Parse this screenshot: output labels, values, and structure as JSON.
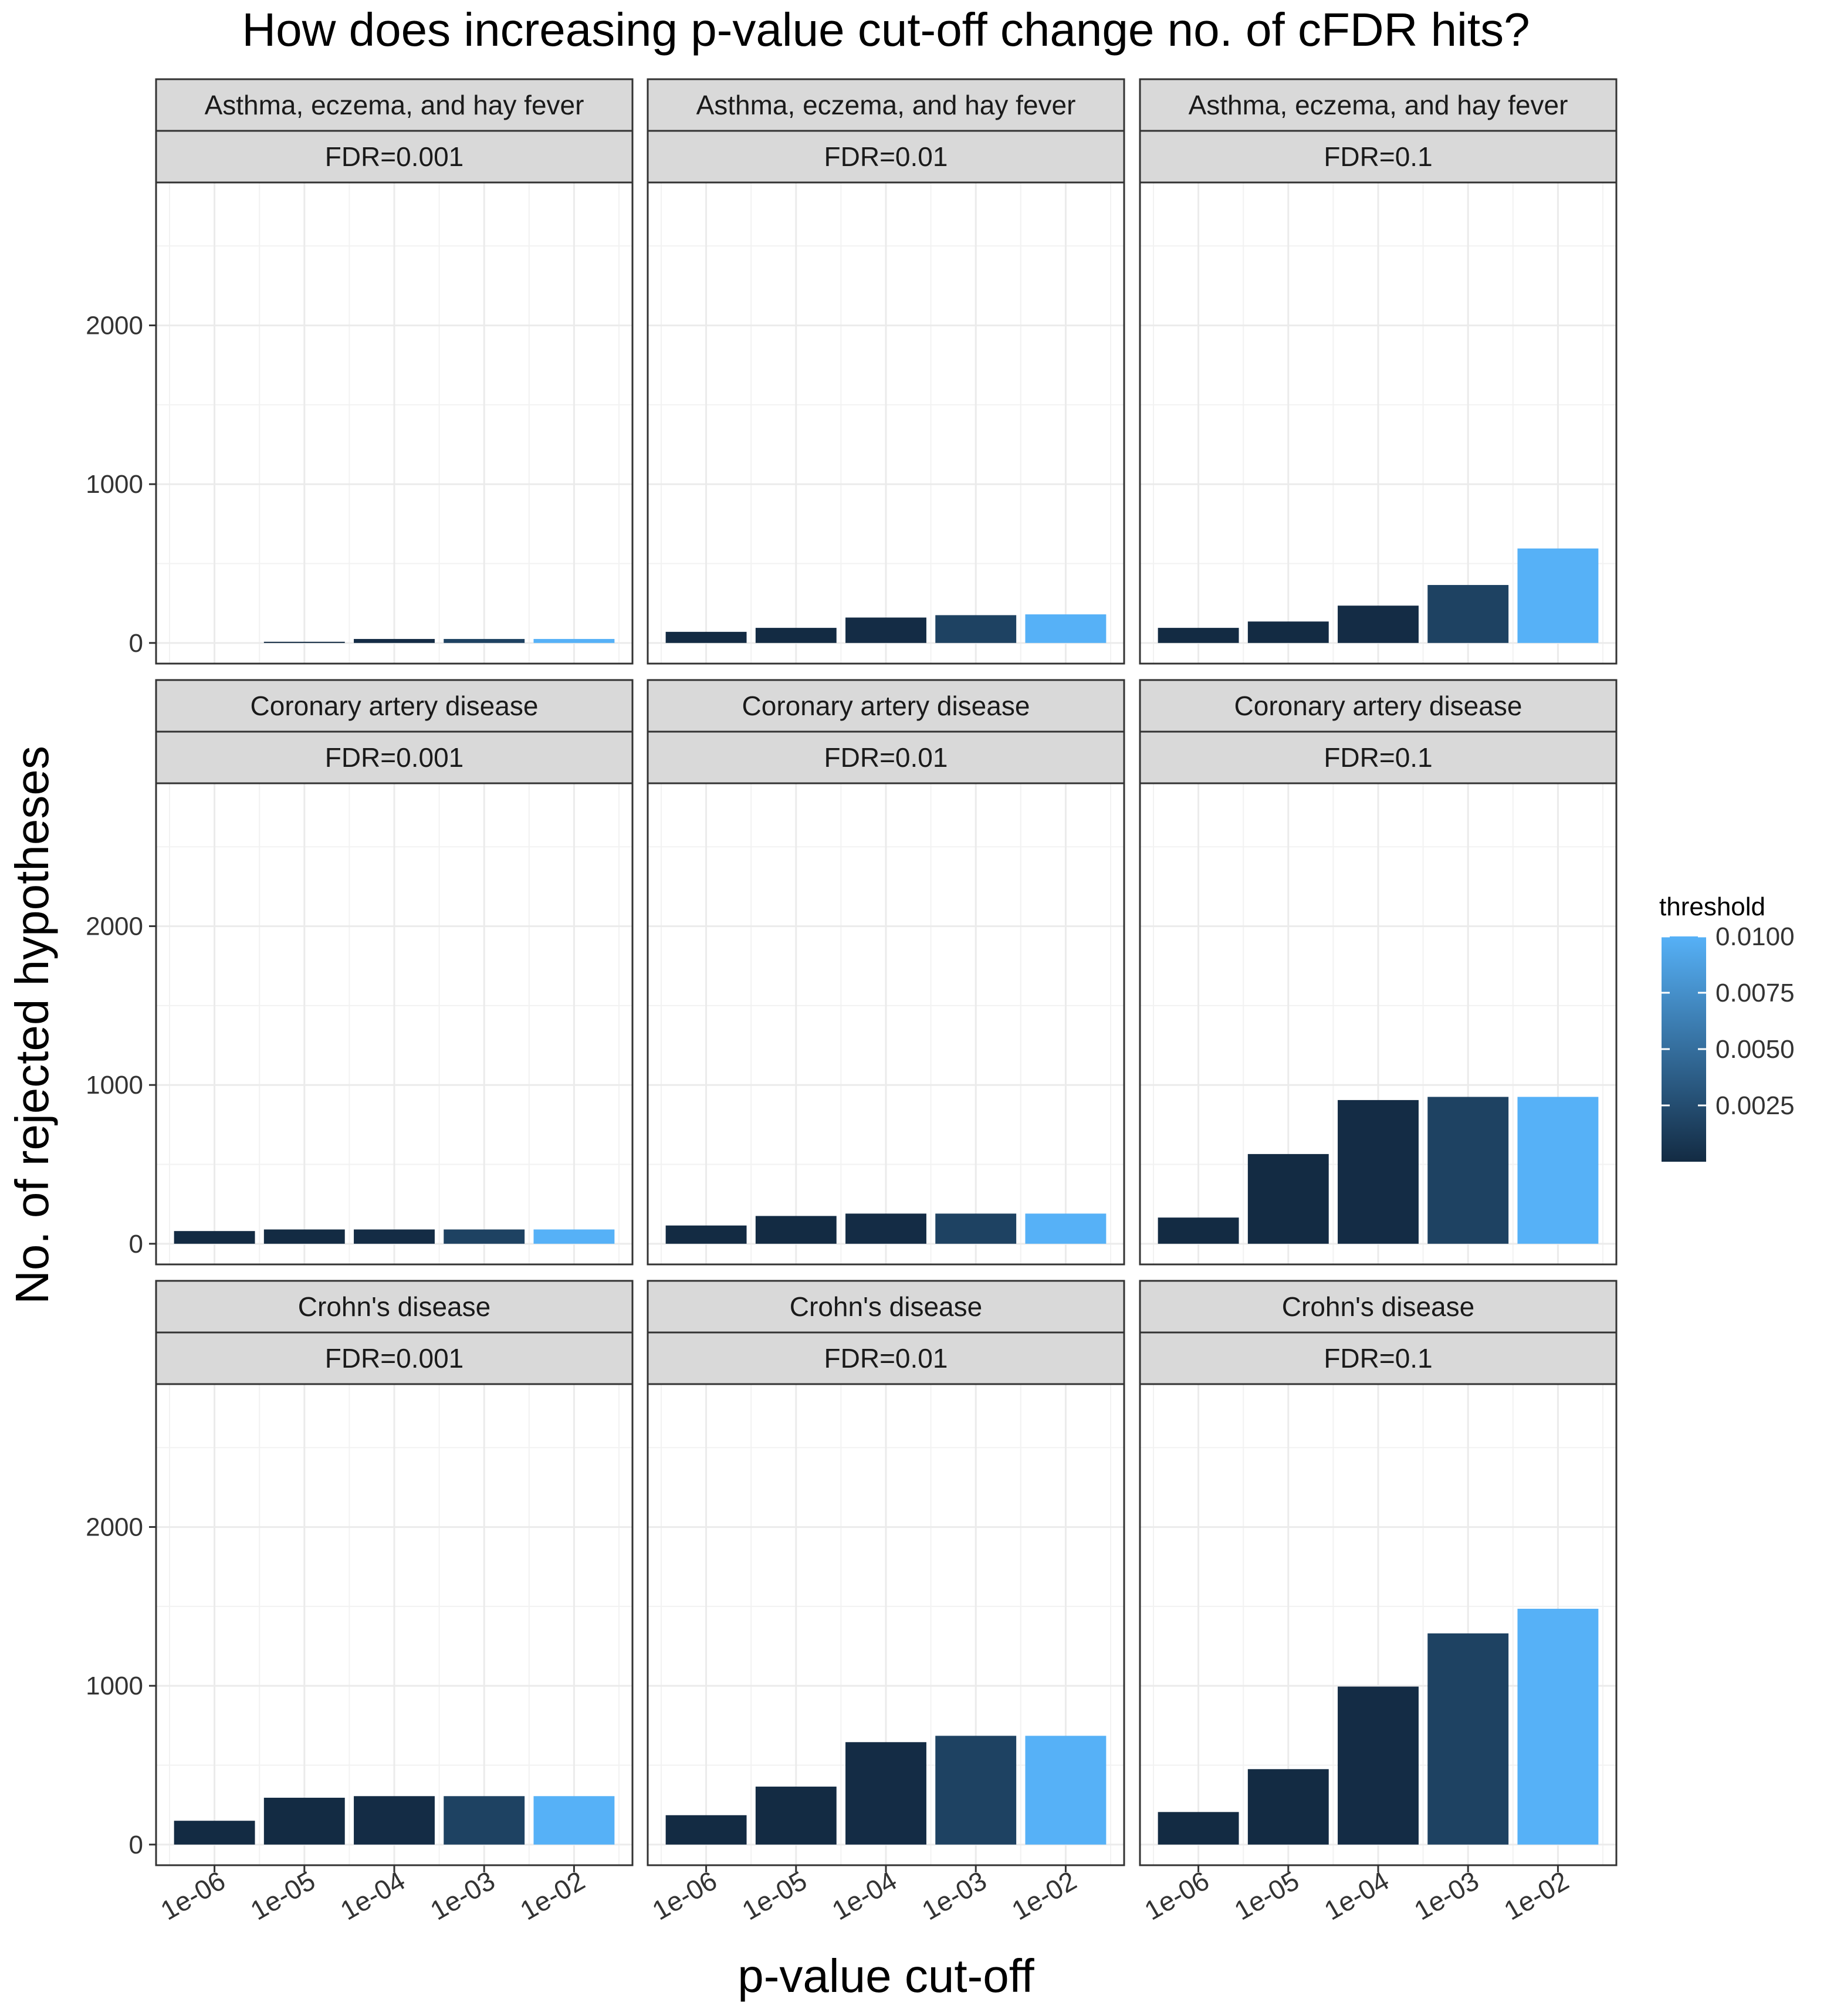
{
  "chart_data": {
    "type": "bar",
    "title": "How does increasing p-value cut-off change no. of cFDR hits?",
    "xlabel": "p-value cut-off",
    "ylabel": "No. of rejected hypotheses",
    "categories": [
      "1e-06",
      "1e-05",
      "1e-04",
      "1e-03",
      "1e-02"
    ],
    "threshold_values": [
      1e-06,
      1e-05,
      0.0001,
      0.001,
      0.01
    ],
    "ylim": [
      -130,
      2900
    ],
    "yticks": [
      0,
      1000,
      2000
    ],
    "ytick_labels": [
      "0",
      "1000",
      "2000"
    ],
    "grid": true,
    "fdr_levels": [
      "FDR=0.001",
      "FDR=0.01",
      "FDR=0.1"
    ],
    "traits": [
      "Asthma, eczema, and hay fever",
      "Coronary artery disease",
      "Crohn's disease"
    ],
    "panels": [
      {
        "trait": "Asthma, eczema, and hay fever",
        "fdr": "FDR=0.001",
        "values": [
          0,
          5,
          25,
          25,
          25
        ]
      },
      {
        "trait": "Asthma, eczema, and hay fever",
        "fdr": "FDR=0.01",
        "values": [
          70,
          95,
          160,
          175,
          180
        ]
      },
      {
        "trait": "Asthma, eczema, and hay fever",
        "fdr": "FDR=0.1",
        "values": [
          95,
          135,
          235,
          365,
          595
        ]
      },
      {
        "trait": "Coronary artery disease",
        "fdr": "FDR=0.001",
        "values": [
          80,
          90,
          90,
          90,
          90
        ]
      },
      {
        "trait": "Coronary artery disease",
        "fdr": "FDR=0.01",
        "values": [
          115,
          175,
          190,
          190,
          190
        ]
      },
      {
        "trait": "Coronary artery disease",
        "fdr": "FDR=0.1",
        "values": [
          165,
          565,
          905,
          925,
          925
        ]
      },
      {
        "trait": "Crohn's disease",
        "fdr": "FDR=0.001",
        "values": [
          150,
          295,
          305,
          305,
          305
        ]
      },
      {
        "trait": "Crohn's disease",
        "fdr": "FDR=0.01",
        "values": [
          185,
          365,
          645,
          685,
          685
        ]
      },
      {
        "trait": "Crohn's disease",
        "fdr": "FDR=0.1",
        "values": [
          205,
          475,
          995,
          1330,
          1485
        ]
      }
    ],
    "legend": {
      "title": "threshold",
      "placement": "right",
      "ticks": [
        0.01,
        0.0075,
        0.005,
        0.0025
      ],
      "tick_labels": [
        "0.0100",
        "0.0075",
        "0.0050",
        "0.0025"
      ],
      "range": [
        1e-06,
        0.01
      ],
      "color_low": "#132B43",
      "color_high": "#56B1F7"
    }
  }
}
